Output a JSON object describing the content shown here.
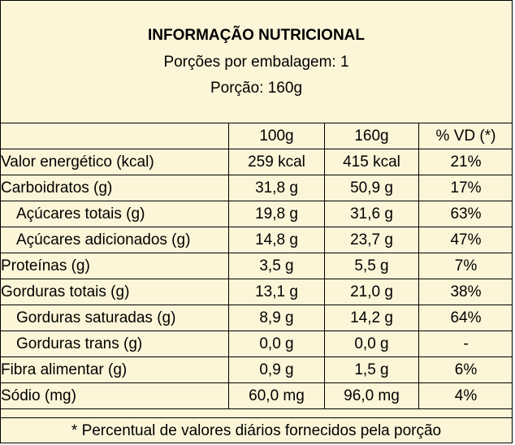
{
  "header": {
    "title": "INFORMAÇÃO NUTRICIONAL",
    "servings_per_package": "Porções por embalagem: 1",
    "serving_size": "Porção: 160g"
  },
  "table": {
    "columns": [
      "",
      "100g",
      "160g",
      "% VD (*)"
    ],
    "rows": [
      {
        "name": "Valor energético (kcal)",
        "v100": "259 kcal",
        "v160": "415 kcal",
        "vd": "21%",
        "indent": false
      },
      {
        "name": "Carboidratos (g)",
        "v100": "31,8 g",
        "v160": "50,9 g",
        "vd": "17%",
        "indent": false
      },
      {
        "name": "Açúcares totais (g)",
        "v100": "19,8 g",
        "v160": "31,6 g",
        "vd": "63%",
        "indent": true
      },
      {
        "name": "Açúcares adicionados (g)",
        "v100": "14,8 g",
        "v160": "23,7 g",
        "vd": "47%",
        "indent": true
      },
      {
        "name": "Proteínas (g)",
        "v100": "3,5 g",
        "v160": "5,5 g",
        "vd": "7%",
        "indent": false
      },
      {
        "name": "Gorduras totais (g)",
        "v100": "13,1 g",
        "v160": "21,0 g",
        "vd": "38%",
        "indent": false
      },
      {
        "name": "Gorduras saturadas (g)",
        "v100": "8,9 g",
        "v160": "14,2 g",
        "vd": "64%",
        "indent": true
      },
      {
        "name": "Gorduras trans (g)",
        "v100": "0,0 g",
        "v160": "0,0 g",
        "vd": "-",
        "indent": true
      },
      {
        "name": "Fibra alimentar (g)",
        "v100": "0,9 g",
        "v160": "1,5 g",
        "vd": "6%",
        "indent": false
      },
      {
        "name": "Sódio (mg)",
        "v100": "60,0 mg",
        "v160": "96,0 mg",
        "vd": "4%",
        "indent": false
      }
    ]
  },
  "footer": {
    "note": "* Percentual de valores diários fornecidos pela porção"
  },
  "colors": {
    "background": "#fdf5d8",
    "border": "#000000",
    "text": "#000000"
  }
}
